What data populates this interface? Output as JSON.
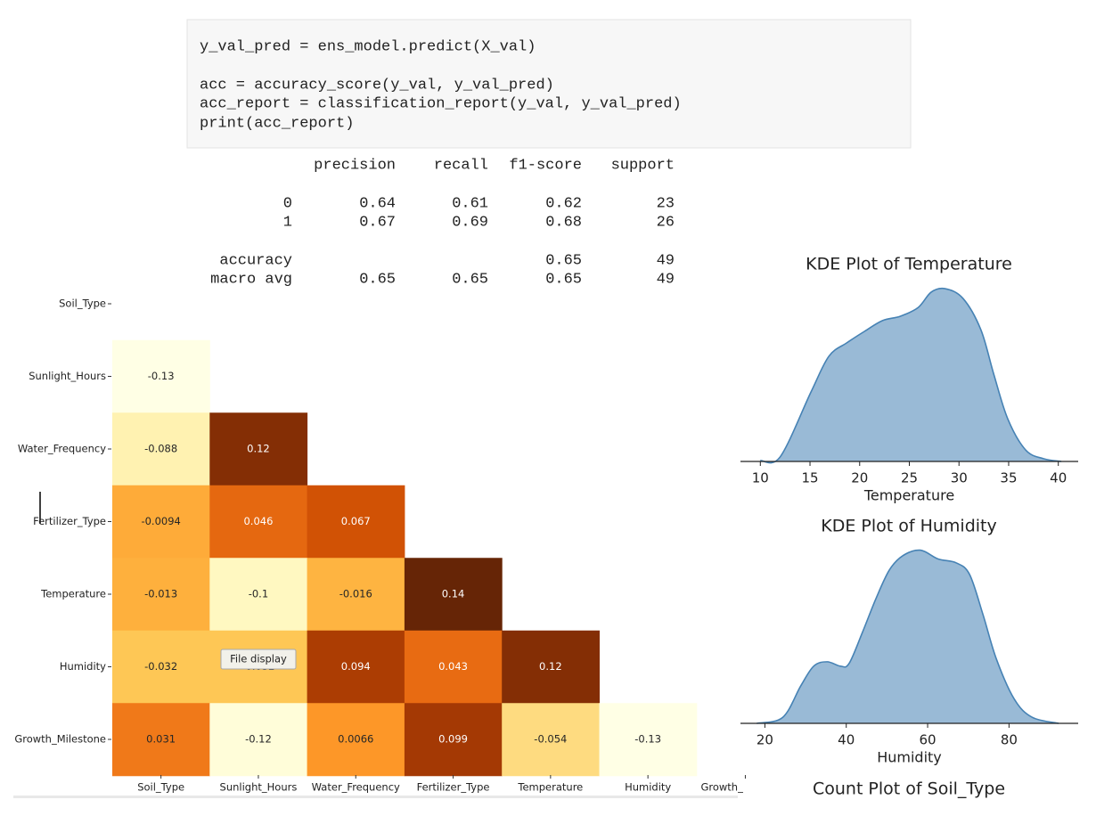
{
  "code_cell": {
    "lines": [
      "y_val_pred = ens_model.predict(X_val)",
      "acc = accuracy_score(y_val, y_val_pred)",
      "acc_report = classification_report(y_val, y_val_pred)",
      "print(acc_report)"
    ]
  },
  "report": {
    "columns": [
      "precision",
      "recall",
      "f1-score",
      "support"
    ],
    "rows": [
      {
        "label": "0",
        "precision": 0.64,
        "recall": 0.61,
        "f1-score": 0.62,
        "support": 23
      },
      {
        "label": "1",
        "precision": 0.67,
        "recall": 0.69,
        "f1-score": 0.68,
        "support": 26
      },
      {
        "label": "accuracy",
        "f1-score": 0.65,
        "support": 49
      },
      {
        "label": "macro avg",
        "precision": 0.65,
        "recall": 0.65,
        "f1-score": 0.65,
        "support": 49
      }
    ]
  },
  "chart_data": [
    {
      "type": "heatmap",
      "cmap": "YlOrBr",
      "rows": [
        "Soil_Type",
        "Sunlight_Hours",
        "Water_Frequency",
        "Fertilizer_Type",
        "Temperature",
        "Humidity",
        "Growth_Milestone"
      ],
      "columns": [
        "Soil_Type",
        "Sunlight_Hours",
        "Water_Frequency",
        "Fertilizer_Type",
        "Temperature",
        "Humidity",
        "Growth_"
      ],
      "values": [
        [],
        [
          -0.13
        ],
        [
          -0.088,
          0.12
        ],
        [
          -0.0094,
          0.046,
          0.067
        ],
        [
          -0.013,
          -0.1,
          -0.016,
          0.14
        ],
        [
          -0.032,
          -0.032,
          0.094,
          0.043,
          0.12
        ],
        [
          0.031,
          -0.12,
          0.0066,
          0.099,
          -0.054,
          -0.13
        ]
      ],
      "tooltip": "File display"
    },
    {
      "type": "kde",
      "title": "KDE Plot of Temperature",
      "xlabel": "Temperature",
      "color": "#4682b4",
      "x": [
        10,
        12,
        15.1,
        16.9,
        18.7,
        20.5,
        22.3,
        24.1,
        25.9,
        27.2,
        28.6,
        30.4,
        32.2,
        33.5,
        34.9,
        36.7,
        38.5,
        40.3
      ],
      "values": [
        0.0004,
        0.002,
        0.03,
        0.0454,
        0.0512,
        0.0562,
        0.0608,
        0.0627,
        0.0665,
        0.0731,
        0.0746,
        0.0704,
        0.0569,
        0.0377,
        0.0185,
        0.005,
        0.0012,
        0
      ],
      "xlim": [
        8,
        42
      ],
      "xticks": [
        10,
        15,
        20,
        25,
        30,
        35,
        40
      ],
      "ylim": [
        0,
        0.08
      ]
    },
    {
      "type": "kde",
      "title": "KDE Plot of Humidity",
      "xlabel": "Humidity",
      "color": "#4682b4",
      "x": [
        18,
        24.4,
        28.8,
        32,
        35.3,
        38.6,
        40.7,
        44,
        47.3,
        50.6,
        53.9,
        58.2,
        62.6,
        67,
        70.3,
        73.6,
        76.9,
        81.3,
        85.7,
        92.2
      ],
      "values": [
        0,
        0.0011,
        0.0068,
        0.0104,
        0.0112,
        0.0104,
        0.0109,
        0.0166,
        0.0227,
        0.0279,
        0.0305,
        0.0315,
        0.0299,
        0.0292,
        0.0271,
        0.0198,
        0.0117,
        0.0044,
        0.0011,
        0
      ],
      "xlim": [
        14,
        97
      ],
      "xticks": [
        20,
        40,
        60,
        80
      ],
      "ylim": [
        0,
        0.035
      ]
    },
    {
      "type": "bar",
      "title": "Count Plot of Soil_Type"
    }
  ]
}
